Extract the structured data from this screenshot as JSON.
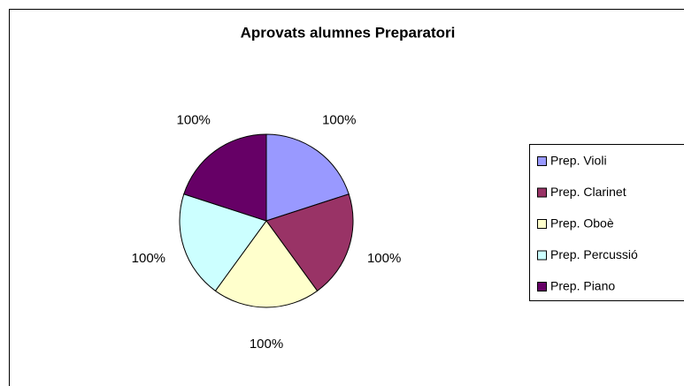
{
  "chart_data": {
    "type": "pie",
    "title": "Aprovats alumnes Preparatori",
    "categories": [
      "Prep. Violi",
      "Prep. Clarinet",
      "Prep. Oboè",
      "Prep. Percussió",
      "Prep. Piano"
    ],
    "values": [
      100,
      100,
      100,
      100,
      100
    ],
    "value_labels": [
      "100%",
      "100%",
      "100%",
      "100%",
      "100%"
    ],
    "colors": [
      "#9999ff",
      "#993366",
      "#ffffcc",
      "#ccffff",
      "#660066"
    ],
    "legend": "right"
  }
}
